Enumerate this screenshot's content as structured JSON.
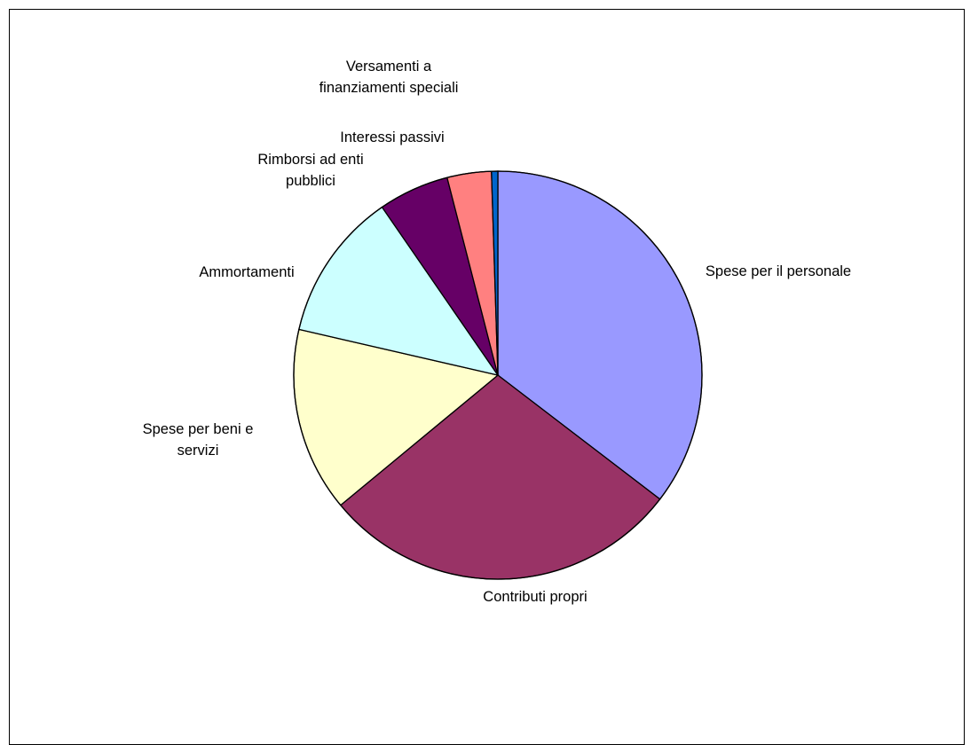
{
  "chart_data": {
    "type": "pie",
    "start_angle_deg": 0,
    "direction": "clockwise",
    "legend": "none",
    "slices": [
      {
        "label": "Spese per il personale",
        "value": 35.4,
        "color": "#9999FF",
        "label_lines": [
          "Spese per il personale"
        ]
      },
      {
        "label": "Contributi propri",
        "value": 28.6,
        "color": "#993366",
        "label_lines": [
          "Contributi propri"
        ]
      },
      {
        "label": "Spese per beni e servizi",
        "value": 14.6,
        "color": "#FFFFCC",
        "label_lines": [
          "Spese per beni e",
          "servizi"
        ]
      },
      {
        "label": "Ammortamenti",
        "value": 11.8,
        "color": "#CCFFFF",
        "label_lines": [
          "Ammortamenti"
        ]
      },
      {
        "label": "Rimborsi ad enti pubblici",
        "value": 5.6,
        "color": "#660066",
        "label_lines": [
          "Rimborsi ad enti",
          "pubblici"
        ]
      },
      {
        "label": "Interessi passivi",
        "value": 3.5,
        "color": "#FF8080",
        "label_lines": [
          "Interessi passivi"
        ]
      },
      {
        "label": "Versamenti a finanziamenti speciali",
        "value": 0.5,
        "color": "#0066CC",
        "label_lines": [
          "Versamenti a",
          "finanziamenti speciali"
        ]
      }
    ]
  }
}
